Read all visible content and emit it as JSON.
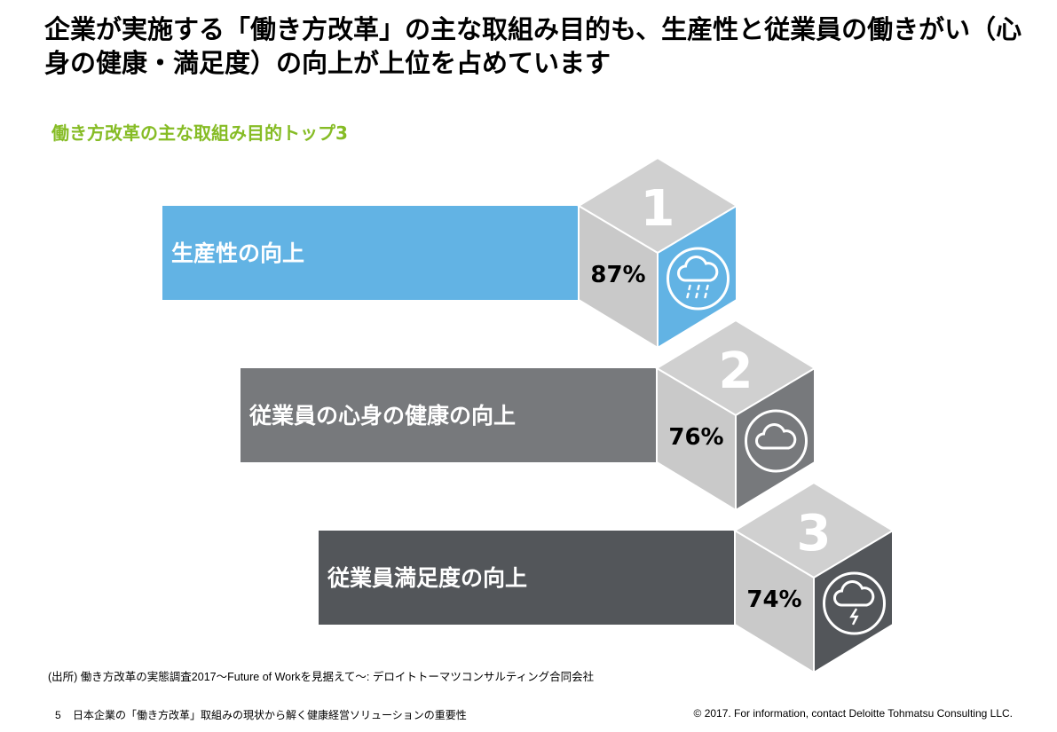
{
  "title": "企業が実施する「働き方改革」の主な取組み目的も、生産性と従業員の働きがい（心身の健康・満足度）の向上が上位を占めています",
  "subtitle": "働き方改革の主な取組み目的トップ3",
  "items": [
    {
      "rank": "1",
      "label": "生産性の向上",
      "percent": "87%",
      "color": "#62b3e4",
      "icon": "cloud-rain-icon"
    },
    {
      "rank": "2",
      "label": "従業員の心身の健康の向上",
      "percent": "76%",
      "color": "#77797c",
      "icon": "cloud-icon"
    },
    {
      "rank": "3",
      "label": "従業員満足度の向上",
      "percent": "74%",
      "color": "#53565a",
      "icon": "cloud-lightning-icon"
    }
  ],
  "source": "(出所) 働き方改革の実態調査2017〜Future of Workを見据えて〜: デロイトトーマツコンサルティング合同会社",
  "footer": {
    "page_number": "5",
    "doc_title": "日本企業の「働き方改革」取組みの現状から解く健康経営ソリューションの重要性",
    "copyright": "© 2017. For information, contact Deloitte Tohmatsu Consulting LLC."
  }
}
